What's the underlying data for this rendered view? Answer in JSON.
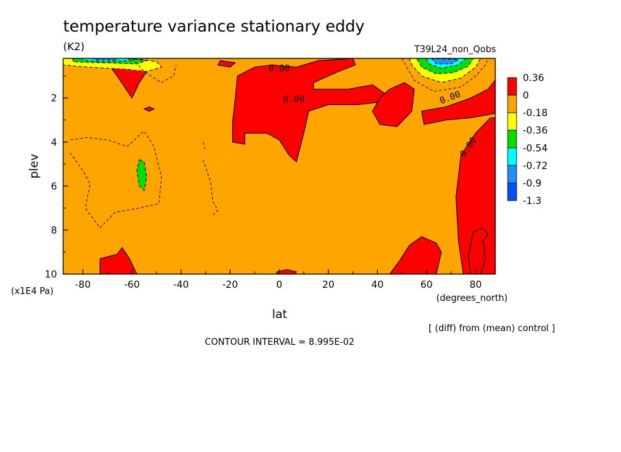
{
  "chart_data": {
    "type": "heatmap",
    "title": "temperature variance stationary eddy",
    "units": "(K2)",
    "experiment": "T39L24_non_Qobs",
    "xlabel": "lat",
    "x_units": "(degrees_north)",
    "ylabel": "plev",
    "y_units": "(x1E4 Pa)",
    "x_ticks": [
      "-80",
      "-60",
      "-40",
      "-20",
      "0",
      "20",
      "40",
      "60",
      "80"
    ],
    "x_tick_values": [
      -80,
      -60,
      -40,
      -20,
      0,
      20,
      40,
      60,
      80
    ],
    "y_ticks": [
      "2",
      "4",
      "6",
      "8",
      "10"
    ],
    "y_tick_values": [
      2,
      4,
      6,
      8,
      10
    ],
    "xlim": [
      -88,
      88
    ],
    "ylim": [
      0.2,
      10
    ],
    "y_inverted": true,
    "note": "[ (diff) from (mean) control ]",
    "contour_interval": "CONTOUR INTERVAL = 8.995E-02",
    "contour_labels": [
      {
        "text": "0.00",
        "lat": 0,
        "plev": 0.8,
        "angle": 0
      },
      {
        "text": "0.00",
        "lat": 6,
        "plev": 2.2,
        "angle": 0
      },
      {
        "text": "0.00",
        "lat": 70,
        "plev": 2.1,
        "angle": -20
      },
      {
        "text": "0.00",
        "lat": 78,
        "plev": 4.3,
        "angle": -55
      }
    ],
    "colorbar": {
      "labels": [
        "0.36",
        "0",
        "-0.18",
        "-0.36",
        "-0.54",
        "-0.72",
        "-0.9",
        "-1.3"
      ],
      "colors": [
        "#ff0000",
        "#ffa500",
        "#ffff00",
        "#00e000",
        "#00ffff",
        "#1e90ff",
        "#0050ff"
      ]
    },
    "positive_regions": [
      [
        [
          -68,
          0.7
        ],
        [
          -60,
          0.5
        ],
        [
          -54,
          0.8
        ],
        [
          -57,
          1.3
        ],
        [
          -60,
          2.0
        ],
        [
          -63,
          1.5
        ],
        [
          -66,
          1.0
        ]
      ],
      [
        [
          -53,
          2.4
        ],
        [
          -51,
          2.5
        ],
        [
          -53,
          2.6
        ],
        [
          -55,
          2.5
        ]
      ],
      [
        [
          -24,
          0.3
        ],
        [
          -18,
          0.4
        ],
        [
          -20,
          0.6
        ],
        [
          -25,
          0.5
        ]
      ],
      [
        [
          -17,
          1.0
        ],
        [
          -10,
          0.6
        ],
        [
          -3,
          0.5
        ],
        [
          7,
          0.6
        ],
        [
          16,
          0.3
        ],
        [
          30,
          0.2
        ],
        [
          31,
          0.5
        ],
        [
          24,
          0.8
        ],
        [
          14,
          1.3
        ],
        [
          14,
          1.6
        ],
        [
          28,
          1.6
        ],
        [
          38,
          1.4
        ],
        [
          43,
          1.8
        ],
        [
          40,
          2.2
        ],
        [
          32,
          2.3
        ],
        [
          20,
          2.3
        ],
        [
          12,
          2.6
        ],
        [
          10,
          3.6
        ],
        [
          7,
          4.9
        ],
        [
          4,
          4.6
        ],
        [
          0,
          3.9
        ],
        [
          -5,
          3.6
        ],
        [
          -14,
          3.6
        ],
        [
          -14,
          4.1
        ],
        [
          -19,
          4.0
        ],
        [
          -19,
          3.1
        ],
        [
          -18,
          2.1
        ]
      ],
      [
        [
          45,
          1.6
        ],
        [
          51,
          1.3
        ],
        [
          55,
          1.6
        ],
        [
          54,
          2.6
        ],
        [
          48,
          3.3
        ],
        [
          41,
          3.2
        ],
        [
          38,
          2.6
        ],
        [
          41,
          2.0
        ]
      ],
      [
        [
          58,
          2.6
        ],
        [
          68,
          2.4
        ],
        [
          78,
          2.0
        ],
        [
          85,
          1.6
        ],
        [
          88,
          1.2
        ],
        [
          88,
          2.7
        ],
        [
          78,
          2.9
        ],
        [
          68,
          3.0
        ],
        [
          59,
          3.2
        ]
      ],
      [
        [
          88,
          2.9
        ],
        [
          88,
          10
        ],
        [
          75,
          10
        ],
        [
          73,
          8.5
        ],
        [
          72,
          6.5
        ],
        [
          74,
          4.6
        ],
        [
          80,
          3.6
        ],
        [
          86,
          2.9
        ]
      ],
      [
        [
          79,
          8.1
        ],
        [
          83,
          7.9
        ],
        [
          85,
          8.2
        ],
        [
          83,
          8.5
        ],
        [
          84,
          9.3
        ],
        [
          82,
          10
        ],
        [
          78,
          10
        ],
        [
          77,
          9.2
        ]
      ],
      [
        [
          58,
          8.3
        ],
        [
          64,
          8.6
        ],
        [
          66,
          9.0
        ],
        [
          64,
          10
        ],
        [
          45,
          10
        ],
        [
          49,
          9.4
        ],
        [
          53,
          8.7
        ]
      ],
      [
        [
          -73,
          9.3
        ],
        [
          -66,
          9.1
        ],
        [
          -64,
          8.8
        ],
        [
          -61,
          9.3
        ],
        [
          -58,
          10
        ],
        [
          -73,
          10
        ]
      ],
      [
        [
          -1,
          9.9
        ],
        [
          3,
          9.8
        ],
        [
          7,
          9.9
        ],
        [
          6,
          10
        ],
        [
          -1,
          10
        ]
      ]
    ],
    "negative_regions": [
      {
        "level": 1,
        "points": [
          [
            -88,
            0.2
          ],
          [
            -70,
            0.2
          ],
          [
            -56,
            0.25
          ],
          [
            -50,
            0.35
          ],
          [
            -48,
            0.6
          ],
          [
            -54,
            0.8
          ],
          [
            -62,
            0.7
          ],
          [
            -78,
            0.6
          ],
          [
            -88,
            0.5
          ]
        ]
      },
      {
        "level": 2,
        "points": [
          [
            -84,
            0.2
          ],
          [
            -74,
            0.2
          ],
          [
            -62,
            0.2
          ],
          [
            -54,
            0.3
          ],
          [
            -58,
            0.45
          ],
          [
            -72,
            0.4
          ],
          [
            -84,
            0.35
          ]
        ]
      },
      {
        "level": 3,
        "points": [
          [
            -80,
            0.2
          ],
          [
            -62,
            0.2
          ],
          [
            -60,
            0.3
          ],
          [
            -72,
            0.35
          ],
          [
            -80,
            0.28
          ]
        ]
      },
      {
        "level": 4,
        "points": [
          [
            -76,
            0.2
          ],
          [
            -66,
            0.2
          ],
          [
            -66,
            0.28
          ],
          [
            -75,
            0.27
          ]
        ]
      },
      {
        "level": 2,
        "points": [
          [
            -57,
            4.8
          ],
          [
            -55,
            4.9
          ],
          [
            -54,
            5.6
          ],
          [
            -55,
            6.2
          ],
          [
            -57,
            6.0
          ],
          [
            -58,
            5.3
          ]
        ]
      },
      {
        "level": 1,
        "points": [
          [
            53,
            0.2
          ],
          [
            82,
            0.2
          ],
          [
            80,
            0.6
          ],
          [
            74,
            1.1
          ],
          [
            66,
            1.3
          ],
          [
            58,
            1.0
          ],
          [
            54,
            0.5
          ]
        ]
      },
      {
        "level": 2,
        "points": [
          [
            56,
            0.2
          ],
          [
            79,
            0.2
          ],
          [
            77,
            0.55
          ],
          [
            71,
            0.85
          ],
          [
            64,
            0.9
          ],
          [
            58,
            0.6
          ]
        ]
      },
      {
        "level": 3,
        "points": [
          [
            60,
            0.2
          ],
          [
            76,
            0.2
          ],
          [
            73,
            0.5
          ],
          [
            66,
            0.65
          ],
          [
            61,
            0.45
          ]
        ]
      },
      {
        "level": 4,
        "points": [
          [
            62,
            0.2
          ],
          [
            73,
            0.25
          ],
          [
            70,
            0.45
          ],
          [
            64,
            0.45
          ]
        ]
      }
    ],
    "dashed_contours": [
      [
        [
          -85,
          3.9
        ],
        [
          -78,
          3.8
        ],
        [
          -70,
          3.9
        ],
        [
          -62,
          4.2
        ],
        [
          -55,
          3.5
        ],
        [
          -51,
          4.2
        ],
        [
          -48,
          5.6
        ],
        [
          -49,
          6.8
        ],
        [
          -57,
          7.0
        ],
        [
          -67,
          7.2
        ],
        [
          -73,
          7.9
        ],
        [
          -79,
          7.0
        ],
        [
          -77,
          5.9
        ],
        [
          -80,
          5.3
        ],
        [
          -85,
          4.5
        ]
      ],
      [
        [
          -31,
          4.0
        ],
        [
          -30,
          4.4
        ]
      ],
      [
        [
          -31,
          4.8
        ],
        [
          -28,
          5.8
        ],
        [
          -27,
          6.7
        ],
        [
          -25,
          7.1
        ],
        [
          -27,
          7.3
        ]
      ],
      [
        [
          -60,
          0.2
        ],
        [
          -55,
          0.8
        ],
        [
          -48,
          1.3
        ],
        [
          -43,
          1.0
        ],
        [
          -42,
          0.5
        ]
      ],
      [
        [
          50,
          0.2
        ],
        [
          55,
          1.2
        ],
        [
          63,
          1.7
        ],
        [
          74,
          1.5
        ],
        [
          80,
          1.0
        ],
        [
          84,
          0.5
        ],
        [
          85,
          0.2
        ]
      ]
    ]
  }
}
